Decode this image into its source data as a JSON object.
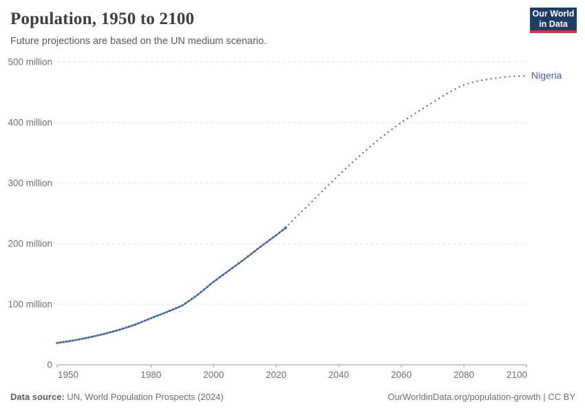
{
  "header": {
    "title": "Population, 1950 to 2100",
    "subtitle": "Future projections are based on the UN medium scenario.",
    "logo": {
      "line1": "Our World",
      "line2": "in Data",
      "bg": "#1d3d63",
      "accent": "#e5283c"
    }
  },
  "footer": {
    "source_label": "Data source:",
    "source_text": "UN, World Population Prospects (2024)",
    "link_text": "OurWorldinData.org/population-growth | CC BY"
  },
  "chart_data": {
    "type": "line",
    "title": "Population, 1950 to 2100",
    "entity": "Nigeria",
    "end_label": "Nigeria",
    "unit": "million people",
    "xlabel": "",
    "ylabel": "",
    "xlim": [
      1950,
      2100
    ],
    "ylim": [
      0,
      500
    ],
    "x_ticks": [
      1950,
      1980,
      2000,
      2020,
      2040,
      2060,
      2080,
      2100
    ],
    "y_ticks": [
      0,
      100,
      200,
      300,
      400,
      500
    ],
    "y_tick_labels": [
      "0",
      "100 million",
      "200 million",
      "300 million",
      "400 million",
      "500 million"
    ],
    "grid": "horizontal-dashed",
    "legend_position": "end-of-line",
    "projection_start_year": 2023,
    "colors": {
      "line": "#4c6a9c",
      "end_label": "#44639e",
      "grid": "#dedede",
      "axis": "#9a9a9a",
      "tick_text": "#6e6e6e"
    },
    "series": [
      {
        "name": "Nigeria (estimates)",
        "style": "solid-with-markers",
        "points": [
          [
            1950,
            36
          ],
          [
            1955,
            40
          ],
          [
            1960,
            45
          ],
          [
            1965,
            51
          ],
          [
            1970,
            58
          ],
          [
            1975,
            66.5
          ],
          [
            1980,
            77
          ],
          [
            1985,
            87
          ],
          [
            1990,
            98
          ],
          [
            1995,
            116
          ],
          [
            2000,
            137
          ],
          [
            2005,
            156
          ],
          [
            2010,
            175
          ],
          [
            2015,
            195
          ],
          [
            2020,
            214
          ],
          [
            2023,
            226
          ]
        ]
      },
      {
        "name": "Nigeria (UN medium projection)",
        "style": "dotted",
        "points": [
          [
            2023,
            226
          ],
          [
            2025,
            237
          ],
          [
            2030,
            262
          ],
          [
            2035,
            288
          ],
          [
            2040,
            313
          ],
          [
            2045,
            337
          ],
          [
            2050,
            360
          ],
          [
            2055,
            381
          ],
          [
            2060,
            400
          ],
          [
            2065,
            417
          ],
          [
            2070,
            433
          ],
          [
            2075,
            449
          ],
          [
            2080,
            462
          ],
          [
            2085,
            469
          ],
          [
            2090,
            473
          ],
          [
            2095,
            476
          ],
          [
            2100,
            477
          ]
        ]
      }
    ]
  }
}
